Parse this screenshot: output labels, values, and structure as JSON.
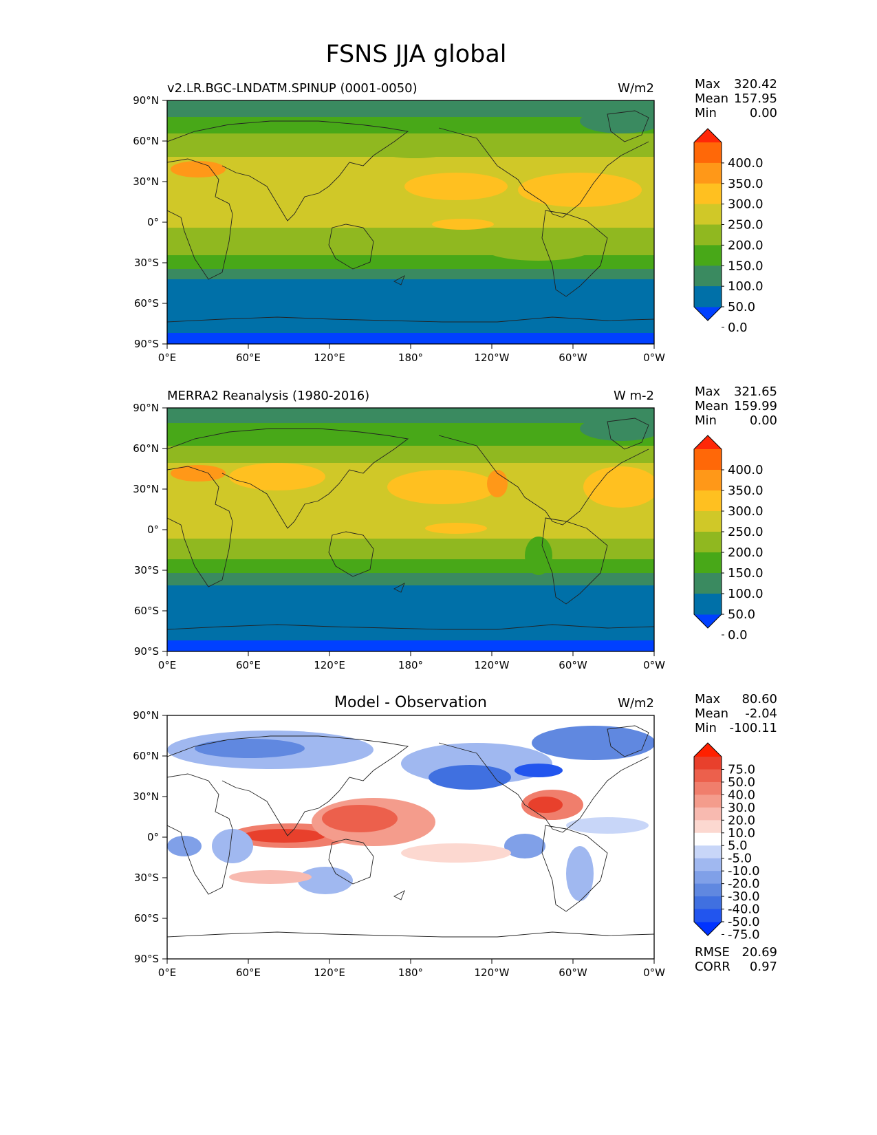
{
  "title": "FSNS JJA global",
  "x_ticks": [
    "0°E",
    "60°E",
    "120°E",
    "180°",
    "120°W",
    "60°W",
    "0°W"
  ],
  "y_ticks": [
    "90°N",
    "60°N",
    "30°N",
    "0°",
    "30°S",
    "60°S",
    "90°S"
  ],
  "panels": [
    {
      "name": "test",
      "title_left": "v2.LR.BGC-LNDATM.SPINUP (0001-0050)",
      "title_center": "",
      "units": "W/m2",
      "stats": [
        {
          "label": "Max",
          "value": "320.42"
        },
        {
          "label": "Mean",
          "value": "157.95"
        },
        {
          "label": "Min",
          "value": "0.00"
        }
      ],
      "colorbar_labels": [
        "400.0",
        "350.0",
        "300.0",
        "250.0",
        "200.0",
        "150.0",
        "100.0",
        "50.0",
        "0.0"
      ],
      "colorbar_colors": [
        "#0040ff",
        "#0070a8",
        "#3a8a60",
        "#48a818",
        "#90b820",
        "#d0c828",
        "#ffc020",
        "#ff9818",
        "#ff6808",
        "#ff2808"
      ],
      "metrics": []
    },
    {
      "name": "reference",
      "title_left": "MERRA2 Reanalysis (1980-2016)",
      "title_center": "",
      "units": "W m-2",
      "stats": [
        {
          "label": "Max",
          "value": "321.65"
        },
        {
          "label": "Mean",
          "value": "159.99"
        },
        {
          "label": "Min",
          "value": "0.00"
        }
      ],
      "colorbar_labels": [
        "400.0",
        "350.0",
        "300.0",
        "250.0",
        "200.0",
        "150.0",
        "100.0",
        "50.0",
        "0.0"
      ],
      "colorbar_colors": [
        "#0040ff",
        "#0070a8",
        "#3a8a60",
        "#48a818",
        "#90b820",
        "#d0c828",
        "#ffc020",
        "#ff9818",
        "#ff6808",
        "#ff2808"
      ],
      "metrics": []
    },
    {
      "name": "difference",
      "title_left": "",
      "title_center": "Model - Observation",
      "units": "W/m2",
      "stats": [
        {
          "label": "Max",
          "value": "80.60"
        },
        {
          "label": "Mean",
          "value": "-2.04"
        },
        {
          "label": "Min",
          "value": "-100.11"
        }
      ],
      "colorbar_labels": [
        "75.0",
        "50.0",
        "40.0",
        "30.0",
        "20.0",
        "10.0",
        "5.0",
        "-5.0",
        "-10.0",
        "-20.0",
        "-30.0",
        "-40.0",
        "-50.0",
        "-75.0"
      ],
      "colorbar_colors": [
        "#0033ff",
        "#2255ee",
        "#4070e0",
        "#6088e0",
        "#80a0e8",
        "#a0b8f0",
        "#c8d6f8",
        "#ffffff",
        "#fcd8d0",
        "#f8bab0",
        "#f49c8c",
        "#f07e6c",
        "#ec604c",
        "#e8402c",
        "#ff2000"
      ],
      "metrics": [
        {
          "label": "RMSE",
          "value": "20.69"
        },
        {
          "label": "CORR",
          "value": "0.97"
        }
      ]
    }
  ]
}
